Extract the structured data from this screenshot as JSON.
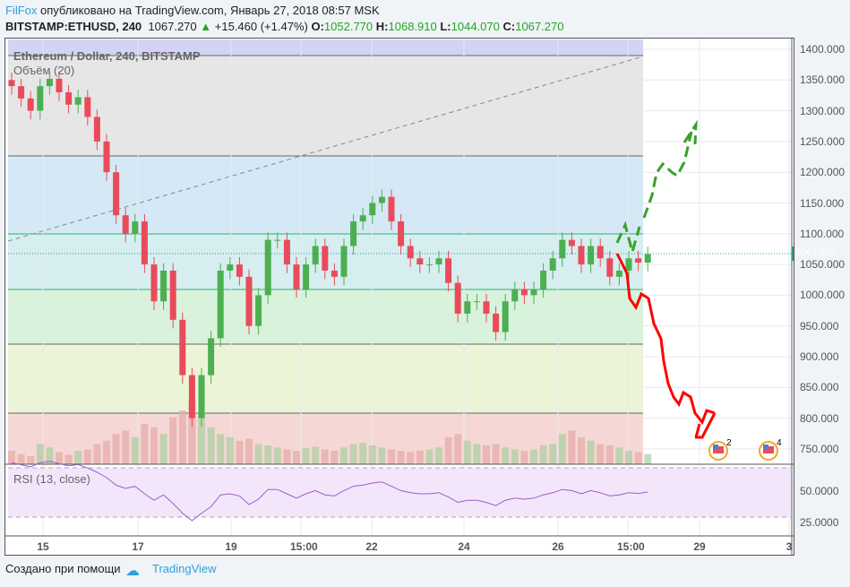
{
  "header": {
    "author": "FilFox",
    "published": "опубликовано на TradingView.com, Январь 27, 2018 08:57 MSK",
    "symbol": "BITSTAMP:ETHUSD, 240",
    "last": "1067.270",
    "change": "+15.460 (+1.47%)",
    "o_label": "O:",
    "o": "1052.770",
    "h_label": "H:",
    "h": "1068.910",
    "l_label": "L:",
    "l": "1044.070",
    "c_label": "C:",
    "c": "1067.270"
  },
  "chart": {
    "title": "Ethereum / Dollar, 240, BITSTAMP",
    "volume_label": "Объём (20)",
    "rsi_label": "RSI (13, close)",
    "current_price": "1067.270",
    "price_ticks": [
      "1400.000",
      "1350.000",
      "1300.000",
      "1250.000",
      "1200.000",
      "1150.000",
      "1100.000",
      "1050.000",
      "1000.000",
      "950.000",
      "900.000",
      "850.000",
      "800.000",
      "750.000"
    ],
    "rsi_ticks": [
      "50.0000",
      "25.0000"
    ],
    "time_ticks": [
      "15",
      "17",
      "19",
      "15:00",
      "22",
      "24",
      "26",
      "15:00",
      "29",
      "3"
    ],
    "events": [
      "2",
      "4"
    ],
    "closes": [
      1340,
      1320,
      1300,
      1340,
      1352,
      1330,
      1310,
      1322,
      1290,
      1250,
      1200,
      1130,
      1100,
      1120,
      1050,
      990,
      1040,
      960,
      870,
      800,
      870,
      930,
      1040,
      1050,
      1030,
      950,
      1000,
      1090,
      1090,
      1050,
      1010,
      1050,
      1080,
      1040,
      1030,
      1080,
      1120,
      1130,
      1150,
      1160,
      1120,
      1080,
      1060,
      1050,
      1050,
      1060,
      1020,
      970,
      990,
      990,
      970,
      940,
      990,
      1010,
      1000,
      1010,
      1040,
      1060,
      1090,
      1080,
      1050,
      1080,
      1060,
      1030,
      1040,
      1060,
      1053,
      1067
    ],
    "volumes": [
      20,
      15,
      12,
      30,
      25,
      18,
      14,
      20,
      22,
      30,
      35,
      45,
      50,
      40,
      60,
      55,
      45,
      70,
      80,
      95,
      70,
      55,
      45,
      40,
      35,
      38,
      30,
      28,
      25,
      22,
      20,
      24,
      26,
      22,
      20,
      25,
      30,
      32,
      28,
      25,
      22,
      20,
      18,
      20,
      22,
      25,
      40,
      45,
      35,
      30,
      28,
      30,
      25,
      22,
      20,
      22,
      28,
      30,
      45,
      50,
      40,
      35,
      30,
      28,
      25,
      20,
      18,
      15
    ]
  },
  "footer": {
    "created": "Создано при помощи",
    "brand": "TradingView"
  },
  "colors": {
    "up": "#4caf50",
    "down": "#e94b5b"
  }
}
